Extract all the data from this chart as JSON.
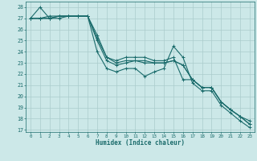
{
  "xlabel": "Humidex (Indice chaleur)",
  "bg_color": "#cce8e8",
  "grid_color": "#aacccc",
  "line_color": "#1a6b6b",
  "xlim": [
    -0.5,
    23.5
  ],
  "ylim": [
    16.8,
    28.5
  ],
  "yticks": [
    17,
    18,
    19,
    20,
    21,
    22,
    23,
    24,
    25,
    26,
    27,
    28
  ],
  "xticks": [
    0,
    1,
    2,
    3,
    4,
    5,
    6,
    7,
    8,
    9,
    10,
    11,
    12,
    13,
    14,
    15,
    16,
    17,
    18,
    19,
    20,
    21,
    22,
    23
  ],
  "series": [
    [
      27.0,
      28.0,
      27.0,
      27.0,
      27.2,
      27.2,
      27.2,
      24.0,
      22.5,
      22.2,
      22.5,
      22.5,
      21.8,
      22.2,
      22.5,
      24.5,
      23.5,
      21.2,
      20.5,
      20.5,
      19.2,
      18.5,
      17.8,
      17.2
    ],
    [
      27.0,
      27.0,
      27.0,
      27.2,
      27.2,
      27.2,
      27.2,
      25.0,
      23.2,
      22.8,
      23.0,
      23.2,
      23.0,
      23.0,
      23.0,
      23.2,
      22.8,
      21.5,
      20.8,
      20.8,
      19.5,
      18.8,
      18.2,
      17.5
    ],
    [
      27.0,
      27.0,
      27.0,
      27.2,
      27.2,
      27.2,
      27.2,
      25.2,
      23.5,
      23.0,
      23.2,
      23.2,
      23.2,
      23.0,
      23.0,
      23.2,
      22.8,
      21.5,
      20.8,
      20.8,
      19.5,
      18.8,
      18.2,
      17.5
    ],
    [
      27.0,
      27.0,
      27.2,
      27.2,
      27.2,
      27.2,
      27.2,
      25.5,
      23.5,
      23.2,
      23.5,
      23.5,
      23.5,
      23.2,
      23.2,
      23.5,
      21.5,
      21.5,
      20.8,
      20.8,
      19.5,
      18.8,
      18.2,
      17.8
    ]
  ]
}
